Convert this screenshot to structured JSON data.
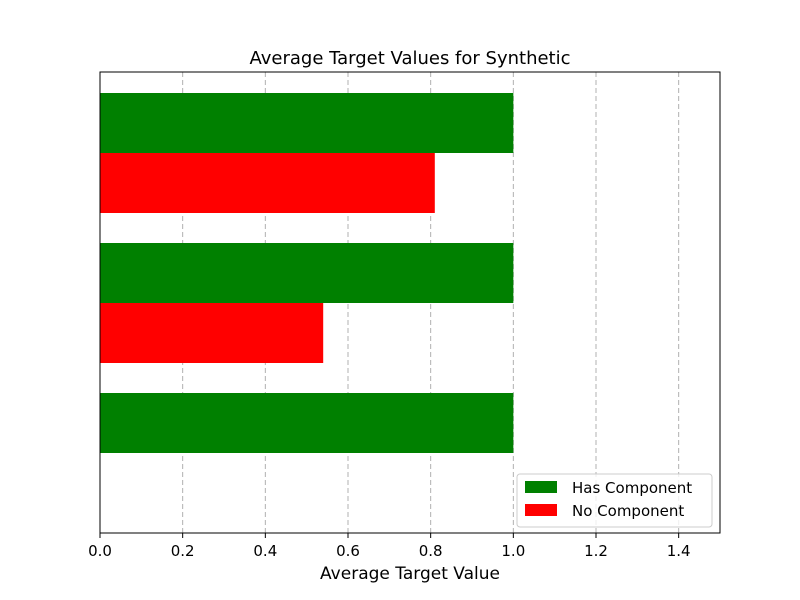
{
  "chart_data": {
    "type": "bar",
    "orientation": "horizontal",
    "title": "Average Target Values for Synthetic",
    "xlabel": "Average Target Value",
    "ylabel": "",
    "xlim": [
      0,
      1.5
    ],
    "x_ticks": [
      "0.0",
      "0.2",
      "0.4",
      "0.6",
      "0.8",
      "1.0",
      "1.2",
      "1.4"
    ],
    "categories": [
      "",
      "",
      ""
    ],
    "grid": "x-dashed",
    "legend_position": "lower-right",
    "series": [
      {
        "name": "Has Component",
        "color": "#008000",
        "values": [
          1.0,
          1.0,
          1.0
        ]
      },
      {
        "name": "No Component",
        "color": "#ff0000",
        "values": [
          0.81,
          0.54,
          0.0
        ]
      }
    ]
  }
}
